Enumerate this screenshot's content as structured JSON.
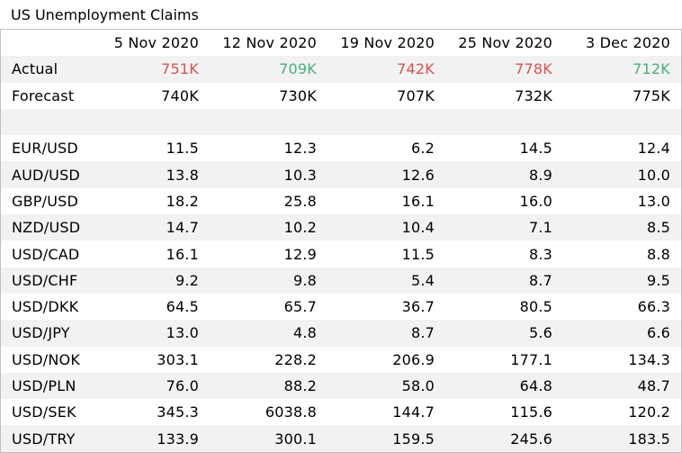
{
  "title": "US Unemployment Claims",
  "colors": {
    "actual_up": "#d9534f",
    "actual_down": "#4caf7d",
    "zebra": "#f2f2f2"
  },
  "columns": [
    "5 Nov 2020",
    "12 Nov 2020",
    "19 Nov 2020",
    "25 Nov 2020",
    "3 Dec 2020"
  ],
  "actual": {
    "label": "Actual",
    "values": [
      "751K",
      "709K",
      "742K",
      "778K",
      "712K"
    ],
    "directions": [
      "up",
      "down",
      "up",
      "up",
      "down"
    ]
  },
  "forecast": {
    "label": "Forecast",
    "values": [
      "740K",
      "730K",
      "707K",
      "732K",
      "775K"
    ]
  },
  "pairs": [
    {
      "label": "EUR/USD",
      "values": [
        "11.5",
        "12.3",
        "6.2",
        "14.5",
        "12.4"
      ]
    },
    {
      "label": "AUD/USD",
      "values": [
        "13.8",
        "10.3",
        "12.6",
        "8.9",
        "10.0"
      ]
    },
    {
      "label": "GBP/USD",
      "values": [
        "18.2",
        "25.8",
        "16.1",
        "16.0",
        "13.0"
      ]
    },
    {
      "label": "NZD/USD",
      "values": [
        "14.7",
        "10.2",
        "10.4",
        "7.1",
        "8.5"
      ]
    },
    {
      "label": "USD/CAD",
      "values": [
        "16.1",
        "12.9",
        "11.5",
        "8.3",
        "8.8"
      ]
    },
    {
      "label": "USD/CHF",
      "values": [
        "9.2",
        "9.8",
        "5.4",
        "8.7",
        "9.5"
      ]
    },
    {
      "label": "USD/DKK",
      "values": [
        "64.5",
        "65.7",
        "36.7",
        "80.5",
        "66.3"
      ]
    },
    {
      "label": "USD/JPY",
      "values": [
        "13.0",
        "4.8",
        "8.7",
        "5.6",
        "6.6"
      ]
    },
    {
      "label": "USD/NOK",
      "values": [
        "303.1",
        "228.2",
        "206.9",
        "177.1",
        "134.3"
      ]
    },
    {
      "label": "USD/PLN",
      "values": [
        "76.0",
        "88.2",
        "58.0",
        "64.8",
        "48.7"
      ]
    },
    {
      "label": "USD/SEK",
      "values": [
        "345.3",
        "6038.8",
        "144.7",
        "115.6",
        "120.2"
      ]
    },
    {
      "label": "USD/TRY",
      "values": [
        "133.9",
        "300.1",
        "159.5",
        "245.6",
        "183.5"
      ]
    }
  ]
}
